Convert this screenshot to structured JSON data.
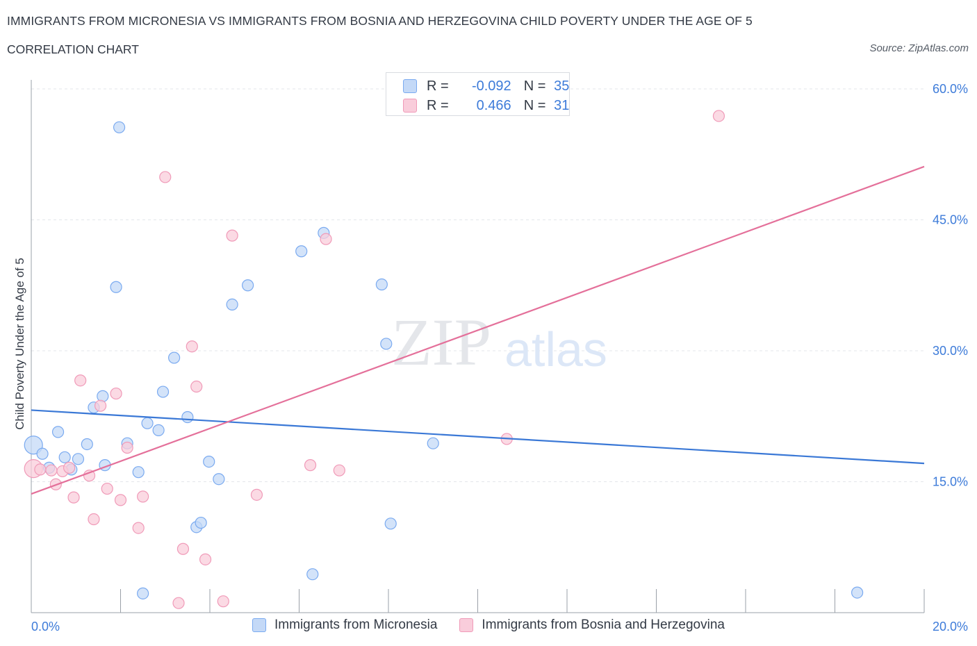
{
  "header": {
    "title": "IMMIGRANTS FROM MICRONESIA VS IMMIGRANTS FROM BOSNIA AND HERZEGOVINA CHILD POVERTY UNDER THE AGE OF 5",
    "subtitle": "CORRELATION CHART",
    "source": "Source: ZipAtlas.com"
  },
  "legend": {
    "rows": [
      {
        "r_label": "R =",
        "r_value": "-0.092",
        "n_label": "N =",
        "n_value": "35",
        "color": "#7aaaf0"
      },
      {
        "r_label": "R =",
        "r_value": "0.466",
        "n_label": "N =",
        "n_value": "31",
        "color": "#f09ab8"
      }
    ]
  },
  "colors": {
    "blue_fill": "#c4d9f7",
    "blue_stroke": "#7aaaf0",
    "blue_line": "#3a78d6",
    "pink_fill": "#f9cddb",
    "pink_stroke": "#f09ab8",
    "pink_line": "#e4709a",
    "axis_text": "#3d7bd9",
    "grid": "#e3e6ea"
  },
  "chart_data": {
    "type": "scatter",
    "title": "IMMIGRANTS FROM MICRONESIA VS IMMIGRANTS FROM BOSNIA AND HERZEGOVINA CHILD POVERTY UNDER THE AGE OF 5",
    "subtitle": "CORRELATION CHART",
    "xlabel": "",
    "ylabel": "Child Poverty Under the Age of 5",
    "xlim": [
      0,
      20
    ],
    "ylim": [
      0,
      60
    ],
    "x_tick_labels": [
      {
        "value": 0,
        "label": "0.0%"
      },
      {
        "value": 20,
        "label": "20.0%"
      }
    ],
    "y_tick_labels": [
      {
        "value": 15,
        "label": "15.0%"
      },
      {
        "value": 30,
        "label": "30.0%"
      },
      {
        "value": 45,
        "label": "45.0%"
      },
      {
        "value": 60,
        "label": "60.0%"
      }
    ],
    "grid": true,
    "watermark": {
      "zip": "ZIP",
      "atlas": "atlas"
    },
    "series": [
      {
        "name": "Immigrants from Micronesia",
        "R": -0.092,
        "N": 35,
        "trend": {
          "x0": 0,
          "y0": 23.2,
          "x1": 20,
          "y1": 17.1
        },
        "points": [
          {
            "x": 0.05,
            "y": 19.2,
            "big": true
          },
          {
            "x": 0.25,
            "y": 18.2
          },
          {
            "x": 0.4,
            "y": 16.6
          },
          {
            "x": 0.6,
            "y": 20.7
          },
          {
            "x": 0.75,
            "y": 17.8
          },
          {
            "x": 0.9,
            "y": 16.4
          },
          {
            "x": 1.05,
            "y": 17.6
          },
          {
            "x": 1.25,
            "y": 19.3
          },
          {
            "x": 1.4,
            "y": 23.5
          },
          {
            "x": 1.6,
            "y": 24.8
          },
          {
            "x": 1.65,
            "y": 16.9
          },
          {
            "x": 1.9,
            "y": 37.3
          },
          {
            "x": 1.97,
            "y": 55.6
          },
          {
            "x": 2.15,
            "y": 19.4
          },
          {
            "x": 2.4,
            "y": 16.1
          },
          {
            "x": 2.5,
            "y": 2.2
          },
          {
            "x": 2.6,
            "y": 21.7
          },
          {
            "x": 2.85,
            "y": 20.9
          },
          {
            "x": 2.95,
            "y": 25.3
          },
          {
            "x": 3.2,
            "y": 29.2
          },
          {
            "x": 3.5,
            "y": 22.4
          },
          {
            "x": 3.7,
            "y": 9.8
          },
          {
            "x": 3.8,
            "y": 10.3
          },
          {
            "x": 3.98,
            "y": 17.3
          },
          {
            "x": 4.2,
            "y": 15.3
          },
          {
            "x": 4.5,
            "y": 35.3
          },
          {
            "x": 4.85,
            "y": 37.5
          },
          {
            "x": 6.05,
            "y": 41.4
          },
          {
            "x": 6.3,
            "y": 4.4
          },
          {
            "x": 6.55,
            "y": 43.5
          },
          {
            "x": 7.85,
            "y": 37.6
          },
          {
            "x": 7.95,
            "y": 30.8
          },
          {
            "x": 8.05,
            "y": 10.2
          },
          {
            "x": 9.0,
            "y": 19.4
          },
          {
            "x": 18.5,
            "y": 2.3
          }
        ]
      },
      {
        "name": "Immigrants from Bosnia and Herzegovina",
        "R": 0.466,
        "N": 31,
        "trend": {
          "x0": 0,
          "y0": 13.6,
          "x1": 20,
          "y1": 51.1
        },
        "points": [
          {
            "x": 0.05,
            "y": 16.5,
            "big": true
          },
          {
            "x": 0.2,
            "y": 16.4
          },
          {
            "x": 0.45,
            "y": 16.3
          },
          {
            "x": 0.55,
            "y": 14.7
          },
          {
            "x": 0.7,
            "y": 16.2
          },
          {
            "x": 0.85,
            "y": 16.6
          },
          {
            "x": 0.95,
            "y": 13.2
          },
          {
            "x": 1.1,
            "y": 26.6
          },
          {
            "x": 1.3,
            "y": 15.7
          },
          {
            "x": 1.4,
            "y": 10.7
          },
          {
            "x": 1.55,
            "y": 23.7
          },
          {
            "x": 1.7,
            "y": 14.2
          },
          {
            "x": 1.9,
            "y": 25.1
          },
          {
            "x": 2.0,
            "y": 12.9
          },
          {
            "x": 2.15,
            "y": 18.9
          },
          {
            "x": 2.4,
            "y": 9.7
          },
          {
            "x": 2.5,
            "y": 13.3
          },
          {
            "x": 3.0,
            "y": 49.9
          },
          {
            "x": 3.3,
            "y": 1.1
          },
          {
            "x": 3.4,
            "y": 7.3
          },
          {
            "x": 3.6,
            "y": 30.5
          },
          {
            "x": 3.7,
            "y": 25.9
          },
          {
            "x": 3.9,
            "y": 6.1
          },
          {
            "x": 4.3,
            "y": 1.3
          },
          {
            "x": 4.5,
            "y": 43.2
          },
          {
            "x": 5.05,
            "y": 13.5
          },
          {
            "x": 6.25,
            "y": 16.9
          },
          {
            "x": 6.6,
            "y": 42.8
          },
          {
            "x": 6.9,
            "y": 16.3
          },
          {
            "x": 10.65,
            "y": 19.9
          },
          {
            "x": 15.4,
            "y": 56.9
          }
        ]
      }
    ]
  }
}
